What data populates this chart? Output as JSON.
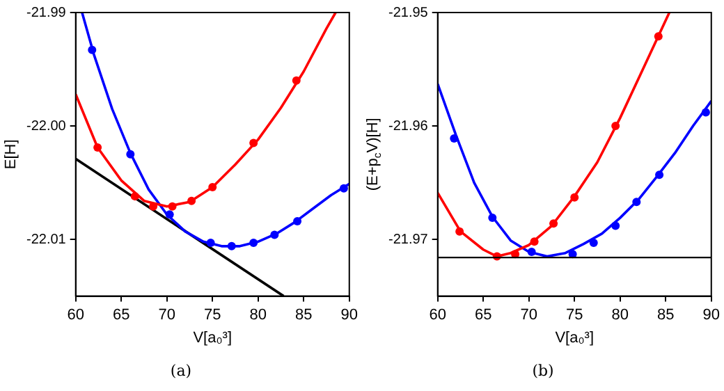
{
  "chart_data": [
    {
      "type": "line",
      "xlabel": "V[a₀³]",
      "ylabel": "E[H]",
      "annotations": [
        "(a)"
      ],
      "grid": false,
      "legend": false,
      "xlim": [
        60,
        90
      ],
      "xticks": [
        60,
        65,
        70,
        75,
        80,
        85,
        90
      ],
      "ylim": [
        -22.015,
        -21.99
      ],
      "yticks": [
        -22.01,
        {
          "value": -22.0,
          "label": "-22.00"
        },
        -21.99
      ],
      "series": [
        {
          "type": "line",
          "marker": "none",
          "color": "#ff0000",
          "x": [
            60,
            62.4,
            65,
            67.5,
            70,
            72.5,
            75,
            77.5,
            80,
            82.5,
            85,
            87.5,
            88.5
          ],
          "values": [
            -21.9972,
            -22.0019,
            -22.0048,
            -22.0066,
            -22.0071,
            -22.0067,
            -22.0054,
            -22.0034,
            -22.0012,
            -21.9984,
            -21.9952,
            -21.9914,
            -21.99
          ]
        },
        {
          "type": "scatter",
          "marker": "circle",
          "color": "#ff0000",
          "x": [
            62.4,
            66.5,
            68.5,
            70.6,
            72.7,
            75,
            79.5,
            84.2
          ],
          "values": [
            -22.0019,
            -22.0062,
            -22.0071,
            -22.0071,
            -22.0066,
            -22.0054,
            -22.0015,
            -21.996
          ]
        },
        {
          "type": "line",
          "marker": "none",
          "color": "#0000ff",
          "x": [
            60.7,
            62,
            64,
            66,
            68,
            70,
            72,
            74,
            76,
            78,
            80,
            82,
            84,
            86,
            88,
            90
          ],
          "values": [
            -21.99,
            -21.9937,
            -21.9985,
            -22.0024,
            -22.0056,
            -22.0078,
            -22.0093,
            -22.0102,
            -22.0106,
            -22.0106,
            -22.0102,
            -22.0095,
            -22.0085,
            -22.0073,
            -22.0061,
            -22.0051
          ]
        },
        {
          "type": "scatter",
          "marker": "circle",
          "color": "#0000ff",
          "x": [
            61.8,
            66,
            70.3,
            74.8,
            77.1,
            79.5,
            81.8,
            84.3,
            89.4
          ],
          "values": [
            -21.9933,
            -22.0025,
            -22.0078,
            -22.0103,
            -22.0106,
            -22.0103,
            -22.0096,
            -22.0084,
            -22.0055
          ]
        },
        {
          "type": "line",
          "marker": "none",
          "color": "#000000",
          "x": [
            60,
            82.8
          ],
          "values": [
            -22.0029,
            -22.015
          ]
        }
      ]
    },
    {
      "type": "line",
      "xlabel": "V[a₀³]",
      "ylabel": "(E+p$_{c}$V)[H]",
      "annotations": [
        "(b)"
      ],
      "grid": false,
      "legend": false,
      "xlim": [
        60,
        90
      ],
      "xticks": [
        60,
        65,
        70,
        75,
        80,
        85,
        90
      ],
      "ylim": [
        -21.975,
        -21.95
      ],
      "yticks": [
        -21.97,
        -21.96,
        -21.95
      ],
      "ref_lines": [
        {
          "axis": "y",
          "value": -21.9716,
          "color": "#000000"
        }
      ],
      "series": [
        {
          "type": "line",
          "marker": "none",
          "color": "#ff0000",
          "x": [
            60,
            62.5,
            65,
            66.5,
            68,
            70,
            72.5,
            75,
            77.5,
            80,
            82.5,
            85.4
          ],
          "values": [
            -21.9659,
            -21.9693,
            -21.9709,
            -21.9715,
            -21.9712,
            -21.9705,
            -21.9688,
            -21.9662,
            -21.9632,
            -21.9593,
            -21.955,
            -21.95
          ]
        },
        {
          "type": "scatter",
          "marker": "circle",
          "color": "#ff0000",
          "x": [
            62.4,
            66.5,
            68.5,
            70.6,
            72.7,
            75,
            79.5,
            84.2
          ],
          "values": [
            -21.9693,
            -21.9715,
            -21.9713,
            -21.9702,
            -21.9686,
            -21.9663,
            -21.96,
            -21.9521
          ]
        },
        {
          "type": "line",
          "marker": "none",
          "color": "#0000ff",
          "x": [
            60,
            62,
            64,
            66,
            68,
            70,
            72,
            74,
            76,
            78,
            80,
            82,
            84,
            86,
            88,
            90
          ],
          "values": [
            -21.9563,
            -21.9608,
            -21.965,
            -21.968,
            -21.9701,
            -21.9711,
            -21.9715,
            -21.9712,
            -21.9704,
            -21.9695,
            -21.9681,
            -21.9665,
            -21.9645,
            -21.9624,
            -21.96,
            -21.9578
          ]
        },
        {
          "type": "scatter",
          "marker": "circle",
          "color": "#0000ff",
          "x": [
            61.8,
            66,
            70.3,
            74.8,
            77.1,
            79.5,
            81.8,
            84.3,
            89.4
          ],
          "values": [
            -21.9611,
            -21.9681,
            -21.9711,
            -21.9713,
            -21.9703,
            -21.9688,
            -21.9667,
            -21.9643,
            -21.9588
          ]
        }
      ]
    }
  ]
}
